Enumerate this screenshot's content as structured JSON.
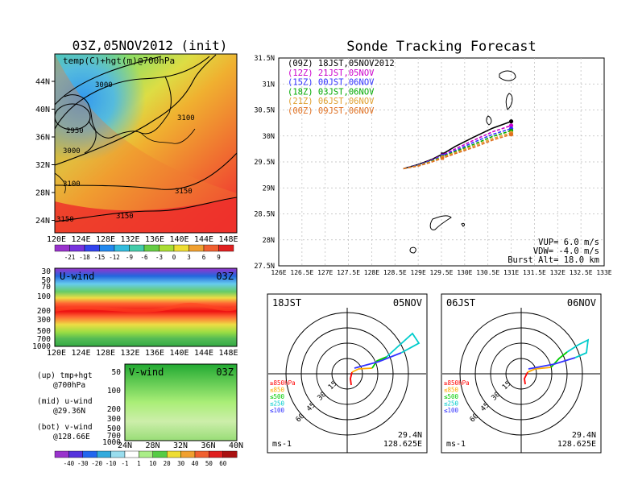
{
  "colors": {
    "tracks": [
      "#000000",
      "#cc00cc",
      "#3333ff",
      "#00aa00",
      "#e0a030",
      "#e07020"
    ],
    "hodo_segments": [
      "#ff0000",
      "#ffaa00",
      "#00cc00",
      "#00cccc",
      "#3333ff"
    ]
  },
  "left": {
    "title": "03Z,05NOV2012 (init)",
    "map_label": "temp(C)+hgt(m)@700hPa",
    "contour_labels": [
      "3000",
      "3100",
      "2950",
      "3000",
      "3100",
      "3150",
      "3150",
      "3150"
    ],
    "lat_ticks": [
      "44N",
      "40N",
      "36N",
      "32N",
      "28N",
      "24N"
    ],
    "lon_ticks": [
      "120E",
      "124E",
      "128E",
      "132E",
      "136E",
      "140E",
      "144E",
      "148E"
    ],
    "colorbar": [
      "-21",
      "-18",
      "-15",
      "-12",
      "-9",
      "-6",
      "-3",
      "0",
      "3",
      "6",
      "9"
    ]
  },
  "uwind": {
    "label": "U-wind",
    "time": "03Z",
    "p_ticks": [
      "30",
      "50",
      "70",
      "100",
      "200",
      "300",
      "500",
      "700",
      "1000"
    ],
    "lon_ticks": [
      "120E",
      "124E",
      "128E",
      "132E",
      "136E",
      "140E",
      "144E",
      "148E"
    ]
  },
  "vwind": {
    "label": "V-wind",
    "time": "03Z",
    "p_ticks": [
      "50",
      "100",
      "200",
      "300",
      "500",
      "700",
      "1000"
    ],
    "lat_ticks": [
      "24N",
      "28N",
      "32N",
      "36N",
      "40N"
    ]
  },
  "notes": [
    "(up) tmp+hgt",
    "@700hPa",
    "(mid) u-wind",
    "@29.36N",
    "(bot) v-wind",
    "@128.66E"
  ],
  "wind_colorbar": [
    "-40",
    "-30",
    "-20",
    "-10",
    "-1",
    "1",
    "10",
    "20",
    "30",
    "40",
    "50",
    "60"
  ],
  "track": {
    "title": "Sonde Tracking Forecast",
    "legend": [
      "(09Z)  18JST,05NOV2012",
      "(12Z)  21JST,05NOV",
      "(15Z)  00JST,06NOV",
      "(18Z)  03JST,06NOV",
      "(21Z)  06JST,06NOV",
      "(00Z)  09JST,06NOV"
    ],
    "params": [
      "VUP= 6.0 m/s",
      "VDW= -4.0 m/s",
      "Burst Alt= 18.0 km"
    ],
    "lat_ticks": [
      "31.5N",
      "31N",
      "30.5N",
      "30N",
      "29.5N",
      "29N",
      "28.5N",
      "28N",
      "27.5N"
    ],
    "lon_ticks": [
      "126E",
      "126.5E",
      "127E",
      "127.5E",
      "128E",
      "128.5E",
      "129E",
      "129.5E",
      "130E",
      "130.5E",
      "131E",
      "131.5E",
      "132E",
      "132.5E",
      "133E"
    ]
  },
  "hodo1": {
    "time": "18JST",
    "date": "05NOV",
    "lat": "29.4N",
    "lon": "128.625E",
    "unit": "ms-1"
  },
  "hodo2": {
    "time": "06JST",
    "date": "06NOV",
    "lat": "29.4N",
    "lon": "128.625E",
    "unit": "ms-1"
  },
  "hodo_rings": [
    "15",
    "30",
    "45",
    "60"
  ],
  "hodo_legend": [
    "≥850hPa",
    "≤850",
    "≤500",
    "≤250",
    "≤100"
  ],
  "chart_data": {
    "type": "line",
    "title": "Sonde Tracking Forecast",
    "xlim": [
      126,
      133
    ],
    "ylim": [
      27.5,
      31.5
    ],
    "series": [
      {
        "name": "(09Z) 18JST,05NOV2012",
        "x": [
          128.68,
          129.0,
          129.3,
          129.52,
          129.8,
          130.2,
          130.6,
          131.0
        ],
        "y": [
          29.37,
          29.45,
          29.55,
          29.65,
          29.8,
          29.98,
          30.15,
          30.28
        ]
      },
      {
        "name": "(12Z) 21JST,05NOV",
        "x": [
          128.68,
          129.0,
          129.3,
          129.52,
          129.8,
          130.2,
          130.6,
          131.0
        ],
        "y": [
          29.37,
          29.44,
          29.54,
          29.63,
          29.75,
          29.92,
          30.08,
          30.2
        ]
      },
      {
        "name": "(15Z) 00JST,06NOV",
        "x": [
          128.68,
          129.0,
          129.3,
          129.52,
          129.8,
          130.2,
          130.6,
          131.0
        ],
        "y": [
          29.37,
          29.44,
          29.53,
          29.62,
          29.72,
          29.88,
          30.03,
          30.14
        ]
      },
      {
        "name": "(18Z) 03JST,06NOV",
        "x": [
          128.68,
          129.0,
          129.3,
          129.52,
          129.8,
          130.2,
          130.6,
          131.0
        ],
        "y": [
          29.37,
          29.43,
          29.52,
          29.6,
          29.7,
          29.84,
          29.99,
          30.1
        ]
      },
      {
        "name": "(21Z) 06JST,06NOV",
        "x": [
          128.68,
          129.0,
          129.3,
          129.52,
          129.8,
          130.2,
          130.6,
          131.0
        ],
        "y": [
          29.37,
          29.43,
          29.51,
          29.59,
          29.68,
          29.81,
          29.95,
          30.06
        ]
      },
      {
        "name": "(00Z) 09JST,06NOV",
        "x": [
          128.68,
          129.0,
          129.3,
          129.52,
          129.8,
          130.2,
          130.6,
          131.0
        ],
        "y": [
          29.37,
          29.42,
          29.5,
          29.57,
          29.66,
          29.78,
          29.92,
          30.03
        ]
      }
    ]
  }
}
